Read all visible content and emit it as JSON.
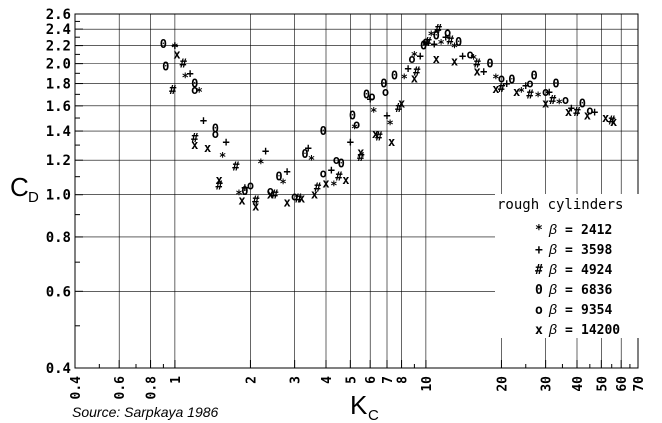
{
  "chart_data": {
    "type": "scatter",
    "xlabel": "K",
    "xlabel_sub": "C",
    "ylabel": "C",
    "ylabel_sub": "D",
    "x_scale": "log",
    "y_scale": "log",
    "xlim": [
      0.4,
      70
    ],
    "ylim": [
      0.4,
      2.6
    ],
    "grid": true,
    "x_ticks": [
      0.4,
      0.6,
      0.8,
      1,
      2,
      3,
      4,
      5,
      6,
      7,
      8,
      10,
      20,
      30,
      40,
      50,
      60,
      70
    ],
    "x_tick_labels": [
      "0.4",
      "0.6",
      "0.8",
      "1",
      "2",
      "3",
      "4",
      "5",
      "6",
      "7",
      "8",
      "10",
      "20",
      "30",
      "40",
      "50",
      "60",
      "70"
    ],
    "x_minor_ticks": [
      0.5,
      0.7,
      0.9,
      9,
      25,
      35,
      45,
      55,
      65
    ],
    "y_ticks": [
      0.4,
      0.6,
      0.8,
      1.0,
      1.2,
      1.4,
      1.6,
      1.8,
      2.0,
      2.2,
      2.4,
      2.6
    ],
    "y_tick_labels": [
      "0.4",
      "0.6",
      "0.8",
      "1.0",
      "1.2",
      "1.4",
      "1.6",
      "1.8",
      "2.0",
      "2.2",
      "2.4",
      "2.6"
    ],
    "y_minor_ticks": [
      0.5,
      0.7,
      0.9,
      1.1,
      1.3,
      1.5,
      1.7,
      1.9,
      2.1,
      2.3,
      2.5
    ],
    "legend_title": "rough cylinders",
    "legend_position": "bottom-right",
    "source_note": "Source: Sarpkaya 1986",
    "series": [
      {
        "name": "β = 2412",
        "marker": "*",
        "symbol": "β",
        "value_text": "2412",
        "points": [
          [
            1.0,
            2.18
          ],
          [
            1.1,
            1.86
          ],
          [
            1.25,
            1.72
          ],
          [
            1.55,
            1.22
          ],
          [
            1.8,
            1.0
          ],
          [
            2.2,
            1.18
          ],
          [
            2.7,
            1.06
          ],
          [
            3.5,
            1.2
          ],
          [
            4.3,
            1.05
          ],
          [
            5.2,
            1.42
          ],
          [
            6.2,
            1.55
          ],
          [
            7.2,
            1.45
          ],
          [
            8.2,
            1.85
          ],
          [
            9.0,
            2.08
          ],
          [
            10.5,
            2.32
          ],
          [
            11.5,
            2.22
          ],
          [
            13.0,
            2.18
          ],
          [
            15.5,
            2.05
          ],
          [
            19.0,
            1.85
          ],
          [
            24.0,
            1.72
          ],
          [
            28.0,
            1.68
          ],
          [
            34.0,
            1.62
          ]
        ]
      },
      {
        "name": "β = 3598",
        "marker": "+",
        "symbol": "β",
        "value_text": "3598",
        "points": [
          [
            1.0,
            2.2
          ],
          [
            1.15,
            1.9
          ],
          [
            1.3,
            1.48
          ],
          [
            1.6,
            1.32
          ],
          [
            1.9,
            1.04
          ],
          [
            2.3,
            1.26
          ],
          [
            2.8,
            1.13
          ],
          [
            3.4,
            1.28
          ],
          [
            4.2,
            1.14
          ],
          [
            5.0,
            1.32
          ],
          [
            6.0,
            1.66
          ],
          [
            7.0,
            1.52
          ],
          [
            8.5,
            1.95
          ],
          [
            9.5,
            2.08
          ],
          [
            10.8,
            2.22
          ],
          [
            12.0,
            2.3
          ],
          [
            14.0,
            2.08
          ],
          [
            17.0,
            1.92
          ],
          [
            21.0,
            1.8
          ],
          [
            25.0,
            1.78
          ],
          [
            31.0,
            1.72
          ],
          [
            38.0,
            1.58
          ],
          [
            47.0,
            1.55
          ]
        ]
      },
      {
        "name": "β = 4924",
        "marker": "#",
        "symbol": "β",
        "value_text": "4924",
        "points": [
          [
            0.98,
            1.74
          ],
          [
            1.08,
            2.0
          ],
          [
            1.2,
            1.35
          ],
          [
            1.5,
            1.05
          ],
          [
            1.75,
            1.16
          ],
          [
            2.1,
            0.97
          ],
          [
            2.5,
            1.0
          ],
          [
            3.1,
            0.98
          ],
          [
            3.7,
            1.04
          ],
          [
            4.5,
            1.1
          ],
          [
            5.5,
            1.22
          ],
          [
            6.5,
            1.36
          ],
          [
            7.8,
            1.58
          ],
          [
            9.2,
            1.92
          ],
          [
            10.2,
            2.24
          ],
          [
            11.2,
            2.4
          ],
          [
            12.5,
            2.26
          ],
          [
            16.0,
            2.0
          ],
          [
            20.0,
            1.76
          ],
          [
            26.0,
            1.7
          ],
          [
            32.0,
            1.65
          ],
          [
            40.0,
            1.55
          ],
          [
            55.0,
            1.48
          ]
        ]
      },
      {
        "name": "β = 6836",
        "marker": "0",
        "symbol": "β",
        "value_text": "6836",
        "points": [
          [
            0.9,
            2.22
          ],
          [
            0.92,
            1.97
          ],
          [
            1.2,
            1.8
          ],
          [
            1.45,
            1.42
          ],
          [
            1.9,
            1.02
          ],
          [
            2.6,
            1.1
          ],
          [
            3.3,
            1.24
          ],
          [
            3.9,
            1.4
          ],
          [
            4.6,
            1.18
          ],
          [
            5.1,
            1.52
          ],
          [
            5.8,
            1.7
          ],
          [
            6.8,
            1.8
          ],
          [
            7.5,
            1.88
          ],
          [
            9.8,
            2.2
          ],
          [
            11.0,
            2.32
          ],
          [
            13.5,
            2.24
          ],
          [
            18.0,
            2.0
          ],
          [
            22.0,
            1.84
          ],
          [
            27.0,
            1.88
          ],
          [
            33.0,
            1.8
          ],
          [
            42.0,
            1.62
          ]
        ]
      },
      {
        "name": "β = 9354",
        "marker": "o",
        "symbol": "β",
        "value_text": "9354",
        "points": [
          [
            1.2,
            1.74
          ],
          [
            1.45,
            1.38
          ],
          [
            2.0,
            1.05
          ],
          [
            2.4,
            1.02
          ],
          [
            3.0,
            0.99
          ],
          [
            3.9,
            1.12
          ],
          [
            4.4,
            1.2
          ],
          [
            5.3,
            1.45
          ],
          [
            6.1,
            1.68
          ],
          [
            6.9,
            1.72
          ],
          [
            8.8,
            2.05
          ],
          [
            10.0,
            2.25
          ],
          [
            12.2,
            2.36
          ],
          [
            15.0,
            2.1
          ],
          [
            20.0,
            1.85
          ],
          [
            26.0,
            1.8
          ],
          [
            30.0,
            1.72
          ],
          [
            36.0,
            1.65
          ],
          [
            45.0,
            1.56
          ]
        ]
      },
      {
        "name": "β = 14200",
        "marker": "x",
        "symbol": "β",
        "value_text": "14200",
        "points": [
          [
            1.02,
            2.1
          ],
          [
            1.2,
            1.3
          ],
          [
            1.35,
            1.28
          ],
          [
            1.5,
            1.08
          ],
          [
            1.85,
            0.97
          ],
          [
            2.1,
            0.94
          ],
          [
            2.4,
            1.0
          ],
          [
            2.8,
            0.96
          ],
          [
            3.2,
            0.98
          ],
          [
            3.6,
            1.0
          ],
          [
            4.0,
            1.06
          ],
          [
            4.8,
            1.08
          ],
          [
            5.5,
            1.25
          ],
          [
            6.3,
            1.38
          ],
          [
            7.3,
            1.32
          ],
          [
            8.0,
            1.62
          ],
          [
            9.0,
            1.85
          ],
          [
            11.0,
            2.05
          ],
          [
            13.0,
            2.02
          ],
          [
            16.0,
            1.92
          ],
          [
            19.0,
            1.75
          ],
          [
            23.0,
            1.72
          ],
          [
            30.0,
            1.62
          ],
          [
            37.0,
            1.55
          ],
          [
            44.0,
            1.52
          ],
          [
            52.0,
            1.5
          ],
          [
            56.0,
            1.47
          ]
        ]
      }
    ]
  }
}
